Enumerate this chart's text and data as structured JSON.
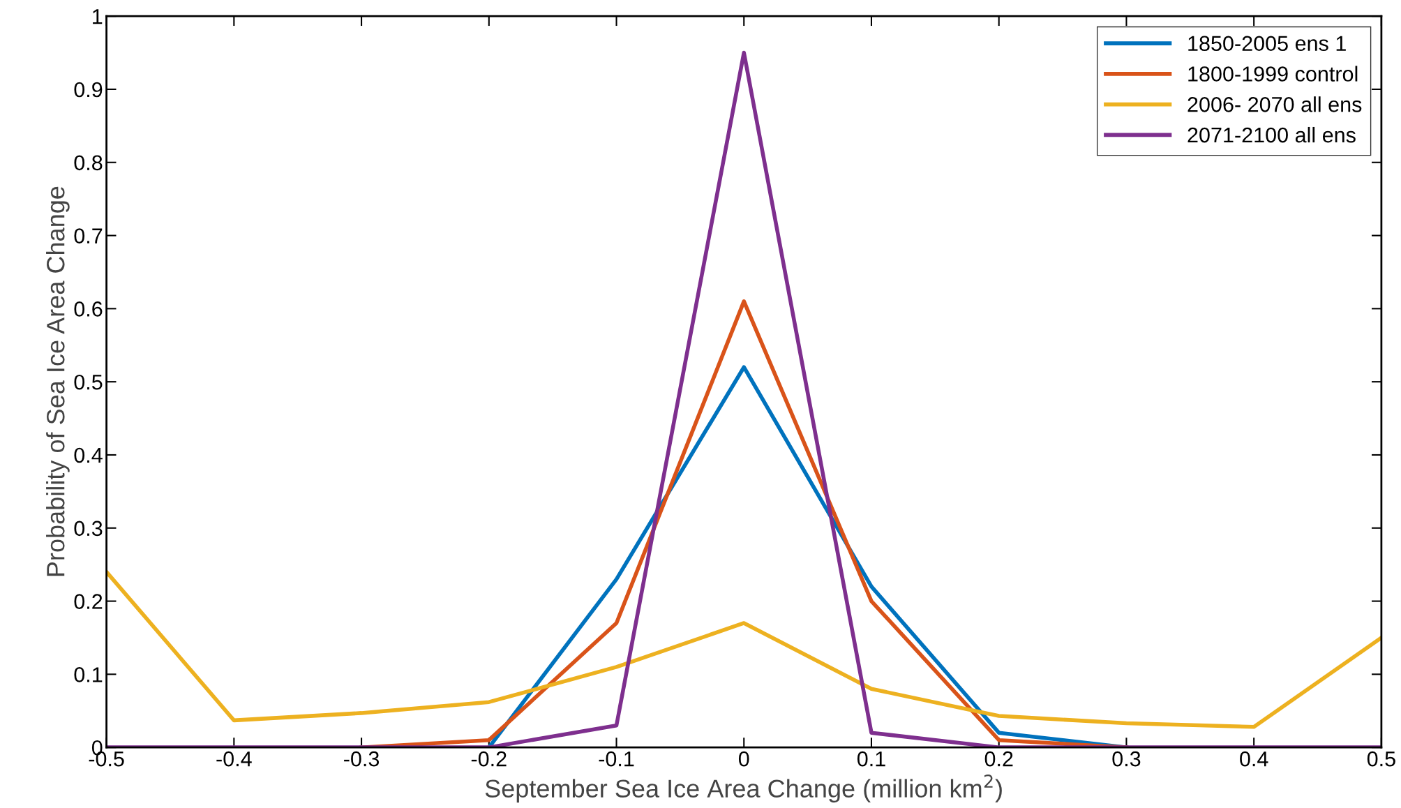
{
  "chart_data": {
    "type": "line",
    "xlabel": "September Sea Ice Area Change (million km$^{2}$)",
    "ylabel": "Probability of Sea Ice Area Change",
    "x": [
      -0.5,
      -0.4,
      -0.3,
      -0.2,
      -0.1,
      0,
      0.1,
      0.2,
      0.3,
      0.4,
      0.5
    ],
    "series": [
      {
        "name": "1850-2005 ens 1",
        "color": "#0072bd",
        "values": [
          null,
          null,
          null,
          0,
          0.23,
          0.52,
          0.22,
          0.02,
          0,
          null,
          null
        ]
      },
      {
        "name": "1800-1999 control",
        "color": "#d95319",
        "values": [
          null,
          null,
          0,
          0.01,
          0.17,
          0.61,
          0.2,
          0.01,
          0,
          null,
          null
        ]
      },
      {
        "name": "2006- 2070 all ens",
        "color": "#edb120",
        "values": [
          0.24,
          0.037,
          0.047,
          0.062,
          0.11,
          0.17,
          0.08,
          0.043,
          0.033,
          0.028,
          0.15
        ]
      },
      {
        "name": "2071-2100 all ens",
        "color": "#7e2f8e",
        "values": [
          0,
          0,
          0,
          0,
          0.03,
          0.95,
          0.02,
          0,
          0,
          0,
          0
        ]
      }
    ],
    "xlim": [
      -0.5,
      0.5
    ],
    "xticks": [
      -0.5,
      -0.4,
      -0.3,
      -0.2,
      -0.1,
      0,
      0.1,
      0.2,
      0.3,
      0.4,
      0.5
    ],
    "ylim": [
      0,
      1
    ],
    "yticks": [
      0,
      0.1,
      0.2,
      0.3,
      0.4,
      0.5,
      0.6,
      0.7,
      0.8,
      0.9,
      1
    ],
    "grid": false,
    "legend": "top right"
  }
}
